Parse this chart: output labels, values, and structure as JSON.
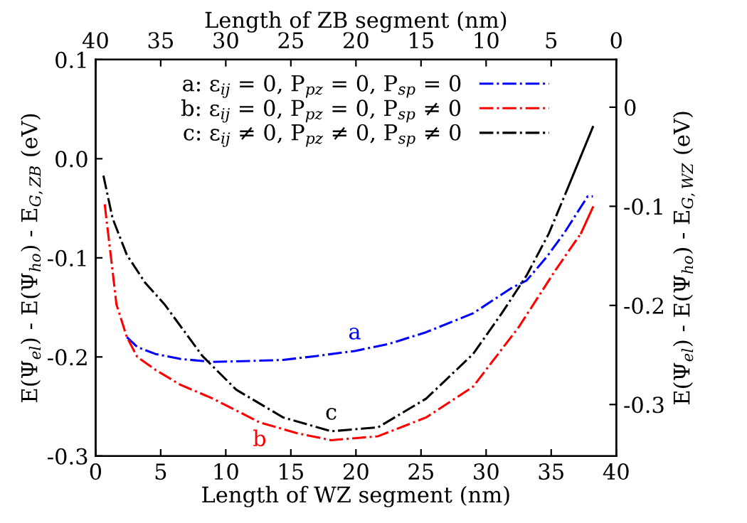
{
  "chart_data": {
    "type": "line",
    "xlabel": "Length of WZ segment (nm)",
    "x2label": "Length of ZB segment (nm)",
    "ylabel": "E(Ψ$_{el}$) - E(Ψ$_{ho}$) - E$_{G,ZB}$ (eV)",
    "y2label": "E(Ψ$_{el}$) - E(Ψ$_{ho}$) - E$_{G,WZ}$ (eV)",
    "xlim": [
      0,
      40
    ],
    "xticks": [
      0,
      5,
      10,
      15,
      20,
      25,
      30,
      35,
      40
    ],
    "x2lim": [
      40,
      0
    ],
    "x2ticks": [
      40,
      35,
      30,
      25,
      20,
      15,
      10,
      5,
      0
    ],
    "ylim": [
      -0.3,
      0.1
    ],
    "yticks": [
      -0.3,
      -0.2,
      -0.1,
      {
        "value": 0,
        "label": "0.0"
      },
      0.1
    ],
    "y2lim": [
      -0.352,
      0.048
    ],
    "y2ticks": [
      -0.3,
      -0.2,
      -0.1,
      0
    ],
    "legend": "top right",
    "grid": false,
    "marker": "none",
    "line_style": "dashdot",
    "series": [
      {
        "name": "a: ε$_{ij}$ = 0, P$_{pz}$ = 0, P$_{sp}$ = 0",
        "color": "#0000ff",
        "x": [
          2.4,
          3.2,
          4.6,
          6.5,
          9.0,
          12,
          14.4,
          17,
          19.9,
          22.5,
          25.4,
          29.0,
          32.0,
          33.1,
          34.6,
          36.0,
          37.8,
          38.2
        ],
        "values": [
          -0.18,
          -0.19,
          -0.197,
          -0.202,
          -0.205,
          -0.204,
          -0.203,
          -0.199,
          -0.194,
          -0.187,
          -0.175,
          -0.156,
          -0.13,
          -0.123,
          -0.1,
          -0.075,
          -0.038,
          -0.038
        ]
      },
      {
        "name": "b: ε$_{ij}$ = 0, P$_{pz}$ = 0, P$_{sp}$ ≠ 0",
        "color": "#ff0000",
        "x": [
          0.7,
          1.3,
          1.6,
          2.4,
          3.2,
          4.6,
          6.5,
          9.0,
          12.6,
          15.5,
          18.1,
          21.7,
          25.4,
          29.0,
          32.5,
          35.3,
          37.3
        ],
        "values": [
          -0.046,
          -0.113,
          -0.147,
          -0.18,
          -0.2,
          -0.213,
          -0.228,
          -0.242,
          -0.266,
          -0.277,
          -0.284,
          -0.28,
          -0.261,
          -0.23,
          -0.17,
          -0.113,
          -0.075
        ]
      },
      {
        "name": "c: ε$_{ij}$ ≠ 0, P$_{pz}$ ≠ 0, P$_{sp}$ ≠ 0",
        "color": "#000000",
        "x": [
          0.6,
          1.3,
          2.4,
          3.8,
          5.3,
          8.2,
          10.8,
          14.4,
          18.1,
          21.7,
          25.4,
          29.0,
          31.2,
          33.1,
          34.8,
          36.2
        ],
        "values": [
          -0.017,
          -0.06,
          -0.097,
          -0.125,
          -0.147,
          -0.199,
          -0.233,
          -0.261,
          -0.275,
          -0.271,
          -0.242,
          -0.197,
          -0.156,
          -0.118,
          -0.076,
          -0.032
        ]
      },
      {
        "color": "#ff0000",
        "line_style": "solid",
        "x": [
          37.3,
          38.2
        ],
        "values": [
          -0.075,
          -0.049
        ]
      },
      {
        "color": "#000000",
        "line_style": "solid",
        "x": [
          36.2,
          38.2
        ],
        "values": [
          -0.032,
          0.032
        ]
      }
    ],
    "annotations": [
      {
        "text": "a",
        "x": 19.9,
        "y": -0.194
      },
      {
        "text": "b",
        "x": 12.6,
        "y": -0.266
      },
      {
        "text": "c",
        "x": 18.1,
        "y": -0.275
      }
    ]
  }
}
